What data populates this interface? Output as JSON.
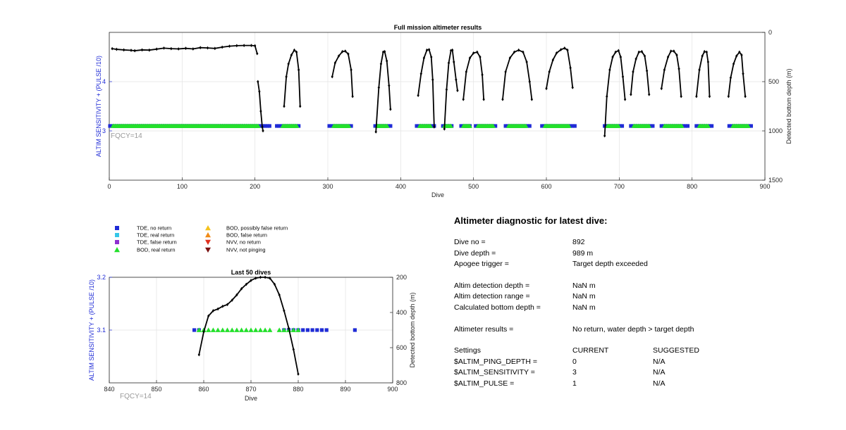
{
  "top_chart": {
    "title": "Full mission altimeter results",
    "xlabel": "Dive",
    "ylabel_left": "ALTIM SENSITIVITY + (PULSE /10)",
    "ylabel_right": "Detected bottom depth (m)",
    "annotation": "FQCY=14",
    "x_ticks": [
      "0",
      "100",
      "200",
      "300",
      "400",
      "500",
      "600",
      "700",
      "800",
      "900"
    ],
    "y_left_ticks": [
      "3",
      "4"
    ],
    "y_right_ticks": [
      "0",
      "500",
      "1000",
      "1500"
    ]
  },
  "bottom_chart": {
    "title": "Last 50 dives",
    "xlabel": "Dive",
    "ylabel_left": "ALTIM SENSITIVITY + (PULSE /10)",
    "ylabel_right": "Detected bottom depth (m)",
    "annotation": "FQCY=14",
    "x_ticks": [
      "840",
      "850",
      "860",
      "870",
      "880",
      "890",
      "900"
    ],
    "y_left_ticks": [
      "3.1",
      "3.2"
    ],
    "y_right_ticks": [
      "200",
      "400",
      "600",
      "800"
    ]
  },
  "legend": [
    {
      "label": "TDE, no return",
      "marker": "square",
      "color": "#1f2bd6"
    },
    {
      "label": "TDE, real return",
      "marker": "square",
      "color": "#35c6e8"
    },
    {
      "label": "TDE, false return",
      "marker": "square",
      "color": "#8e2fd0"
    },
    {
      "label": "BOD, real return",
      "marker": "triangle-up",
      "color": "#22e02a"
    },
    {
      "label": "BOD, possibly false return",
      "marker": "triangle-up",
      "color": "#f4c21d"
    },
    {
      "label": "BOD, false return",
      "marker": "triangle-up",
      "color": "#f08a16"
    },
    {
      "label": "NVV, no return",
      "marker": "triangle-down",
      "color": "#e0301e"
    },
    {
      "label": "NVV, not pinging",
      "marker": "triangle-down",
      "color": "#7a1111"
    }
  ],
  "diagnostic": {
    "title": "Altimeter diagnostic for latest dive:",
    "rows": [
      {
        "label": "Dive no =",
        "value": "892"
      },
      {
        "label": "Dive depth =",
        "value": "989 m"
      },
      {
        "label": "Apogee trigger =",
        "value": "Target depth exceeded"
      },
      {
        "label": "Altim detection depth =",
        "value": "NaN m"
      },
      {
        "label": "Altim detection range =",
        "value": "NaN m"
      },
      {
        "label": "Calculated bottom depth =",
        "value": "NaN m"
      },
      {
        "label": "Altimeter results =",
        "value": "No return, water depth > target depth"
      }
    ],
    "settings_header": {
      "label": "Settings",
      "current": "CURRENT",
      "suggested": "SUGGESTED"
    },
    "settings": [
      {
        "name": "$ALTIM_PING_DEPTH =",
        "current": "0",
        "suggested": "N/A"
      },
      {
        "name": "$ALTIM_SENSITIVITY =",
        "current": "3",
        "suggested": "N/A"
      },
      {
        "name": "$ALTIM_PULSE =",
        "current": "1",
        "suggested": "N/A"
      }
    ]
  },
  "chart_data": [
    {
      "type": "scatter",
      "title": "Full mission altimeter results",
      "xlim": [
        0,
        900
      ],
      "ylim_left": [
        2.0,
        5.0
      ],
      "ylim_right": [
        1500,
        0
      ],
      "grid": true,
      "series": [
        {
          "name": "TDE, no return",
          "axis": "left",
          "color": "#1f2bd6",
          "ranges": [
            [
              1,
              221
            ],
            [
              230,
              262
            ],
            [
              302,
              334
            ],
            [
              365,
              386
            ],
            [
              422,
              446
            ],
            [
              458,
              470
            ],
            [
              483,
              495
            ],
            [
              503,
              532
            ],
            [
              544,
              578
            ],
            [
              594,
              641
            ],
            [
              680,
              705
            ],
            [
              716,
              746
            ],
            [
              758,
              794
            ],
            [
              806,
              827
            ],
            [
              851,
              883
            ]
          ],
          "value": 3.1
        },
        {
          "name": "BOD, real return",
          "axis": "left",
          "color": "#22e02a",
          "ranges": [
            [
              5,
              205
            ],
            [
              238,
              258
            ],
            [
              308,
              330
            ],
            [
              368,
              382
            ],
            [
              426,
              442
            ],
            [
              460,
              470
            ],
            [
              486,
              496
            ],
            [
              506,
              528
            ],
            [
              548,
              572
            ],
            [
              598,
              632
            ],
            [
              684,
              700
            ],
            [
              720,
              742
            ],
            [
              762,
              786
            ],
            [
              810,
              822
            ],
            [
              856,
              878
            ]
          ],
          "value": 3.1
        },
        {
          "name": "Detected bottom depth",
          "axis": "right",
          "color": "#000000",
          "segments": [
            [
              [
                4,
                165
              ],
              [
                10,
                172
              ],
              [
                20,
                178
              ],
              [
                30,
                182
              ],
              [
                35,
                186
              ],
              [
                45,
                178
              ],
              [
                55,
                180
              ],
              [
                65,
                170
              ],
              [
                75,
                160
              ],
              [
                85,
                165
              ],
              [
                95,
                168
              ],
              [
                105,
                162
              ],
              [
                115,
                168
              ],
              [
                125,
                155
              ],
              [
                135,
                158
              ],
              [
                145,
                163
              ],
              [
                155,
                150
              ],
              [
                165,
                140
              ],
              [
                175,
                135
              ],
              [
                185,
                133
              ],
              [
                195,
                133
              ],
              [
                200,
                136
              ],
              [
                203,
                215
              ]
            ],
            [
              [
                204,
                500
              ],
              [
                206,
                600
              ],
              [
                208,
                800
              ],
              [
                210,
                960
              ],
              [
                211,
                999
              ]
            ],
            [
              [
                240,
                750
              ],
              [
                243,
                450
              ],
              [
                246,
                320
              ],
              [
                250,
                230
              ],
              [
                254,
                180
              ],
              [
                257,
                200
              ],
              [
                260,
                380
              ],
              [
                262,
                750
              ]
            ],
            [
              [
                306,
                450
              ],
              [
                310,
                310
              ],
              [
                315,
                240
              ],
              [
                320,
                195
              ],
              [
                324,
                190
              ],
              [
                328,
                220
              ],
              [
                332,
                380
              ],
              [
                334,
                650
              ]
            ],
            [
              [
                366,
                1010
              ],
              [
                370,
                560
              ],
              [
                373,
                320
              ],
              [
                376,
                200
              ],
              [
                378,
                195
              ],
              [
                381,
                290
              ],
              [
                384,
                540
              ],
              [
                386,
                780
              ]
            ],
            [
              [
                424,
                640
              ],
              [
                428,
                420
              ],
              [
                432,
                260
              ],
              [
                436,
                180
              ],
              [
                439,
                175
              ],
              [
                442,
                250
              ],
              [
                444,
                480
              ],
              [
                446,
                960
              ]
            ],
            [
              [
                460,
                980
              ],
              [
                463,
                580
              ],
              [
                466,
                310
              ],
              [
                469,
                185
              ],
              [
                471,
                180
              ],
              [
                473,
                300
              ],
              [
                476,
                480
              ],
              [
                478,
                590
              ]
            ],
            [
              [
                486,
                680
              ],
              [
                490,
                400
              ],
              [
                495,
                260
              ],
              [
                500,
                210
              ],
              [
                505,
                200
              ],
              [
                509,
                250
              ],
              [
                512,
                430
              ],
              [
                514,
                680
              ]
            ],
            [
              [
                540,
                680
              ],
              [
                544,
                400
              ],
              [
                550,
                260
              ],
              [
                556,
                200
              ],
              [
                562,
                180
              ],
              [
                568,
                200
              ],
              [
                573,
                300
              ],
              [
                577,
                500
              ],
              [
                580,
                680
              ]
            ],
            [
              [
                600,
                570
              ],
              [
                604,
                400
              ],
              [
                609,
                280
              ],
              [
                614,
                210
              ],
              [
                620,
                175
              ],
              [
                625,
                160
              ],
              [
                629,
                180
              ],
              [
                633,
                360
              ],
              [
                636,
                560
              ]
            ],
            [
              [
                680,
                1050
              ],
              [
                683,
                650
              ],
              [
                687,
                380
              ],
              [
                691,
                250
              ],
              [
                695,
                200
              ],
              [
                699,
                185
              ],
              [
                702,
                250
              ],
              [
                705,
                450
              ],
              [
                708,
                680
              ]
            ],
            [
              [
                716,
                630
              ],
              [
                719,
                400
              ],
              [
                723,
                270
              ],
              [
                727,
                200
              ],
              [
                731,
                195
              ],
              [
                735,
                240
              ],
              [
                738,
                390
              ],
              [
                741,
                630
              ]
            ],
            [
              [
                758,
                570
              ],
              [
                762,
                380
              ],
              [
                767,
                250
              ],
              [
                771,
                190
              ],
              [
                775,
                190
              ],
              [
                779,
                230
              ],
              [
                782,
                370
              ],
              [
                785,
                650
              ]
            ],
            [
              [
                806,
                650
              ],
              [
                810,
                380
              ],
              [
                814,
                240
              ],
              [
                817,
                195
              ],
              [
                820,
                200
              ],
              [
                822,
                300
              ],
              [
                824,
                650
              ]
            ],
            [
              [
                850,
                650
              ],
              [
                853,
                460
              ],
              [
                857,
                320
              ],
              [
                861,
                240
              ],
              [
                865,
                200
              ],
              [
                868,
                230
              ],
              [
                870,
                420
              ],
              [
                873,
                650
              ]
            ]
          ]
        }
      ]
    },
    {
      "type": "scatter",
      "title": "Last 50 dives",
      "xlim": [
        840,
        900
      ],
      "ylim_left": [
        3.0,
        3.2
      ],
      "ylim_right": [
        800,
        200
      ],
      "grid": true,
      "series": [
        {
          "name": "TDE, no return",
          "axis": "left",
          "color": "#1f2bd6",
          "x": [
            858,
            859,
            877,
            878,
            879,
            880,
            881,
            882,
            883,
            884,
            885,
            886,
            892
          ],
          "value": 3.1
        },
        {
          "name": "BOD, real return",
          "axis": "left",
          "color": "#22e02a",
          "x": [
            859,
            860,
            861,
            862,
            863,
            864,
            865,
            866,
            867,
            868,
            869,
            870,
            871,
            872,
            873,
            874,
            876,
            877,
            878,
            879,
            880
          ],
          "value": 3.1
        },
        {
          "name": "Detected bottom depth",
          "axis": "right",
          "color": "#000000",
          "points": [
            [
              859,
              640
            ],
            [
              860,
              510
            ],
            [
              861,
              420
            ],
            [
              862,
              390
            ],
            [
              863,
              380
            ],
            [
              864,
              365
            ],
            [
              865,
              355
            ],
            [
              866,
              330
            ],
            [
              867,
              300
            ],
            [
              868,
              265
            ],
            [
              869,
              240
            ],
            [
              870,
              218
            ],
            [
              871,
              205
            ],
            [
              872,
              200
            ],
            [
              873,
              200
            ],
            [
              874,
              205
            ],
            [
              875,
              240
            ],
            [
              876,
              300
            ],
            [
              877,
              390
            ],
            [
              878,
              490
            ],
            [
              879,
              610
            ],
            [
              880,
              750
            ]
          ]
        }
      ]
    }
  ]
}
